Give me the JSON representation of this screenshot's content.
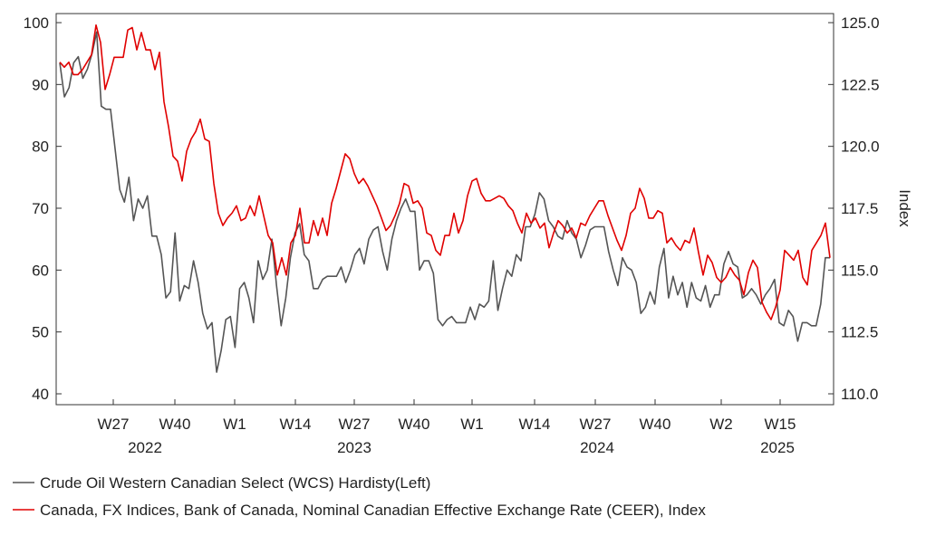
{
  "chart_data": {
    "type": "line",
    "title": "",
    "x_period_labels": [
      "W27",
      "W40",
      "W1",
      "W14",
      "W27",
      "W40",
      "W1",
      "W14",
      "W27",
      "W40",
      "W2",
      "W15"
    ],
    "x_year_labels": [
      "2022",
      "2023",
      "2024",
      "2025"
    ],
    "y_left": {
      "label": "",
      "ticks": [
        "40",
        "50",
        "60",
        "70",
        "80",
        "90",
        "100"
      ],
      "range": [
        40,
        100
      ]
    },
    "y_right": {
      "label": "Index",
      "ticks": [
        "110.0",
        "112.5",
        "115.0",
        "117.5",
        "120.0",
        "122.5",
        "125.0"
      ],
      "range": [
        110,
        125
      ]
    },
    "grid": false,
    "legend_position": "bottom",
    "series": [
      {
        "name": "Crude Oil Western Canadian Select (WCS) Hardisty(Left)",
        "axis": "left",
        "color": "#555555",
        "values": [
          93.5,
          88,
          89.5,
          93.5,
          94.5,
          91,
          92.5,
          95,
          98.5,
          86.5,
          86,
          86,
          79.5,
          73,
          71,
          75,
          68,
          71.5,
          70,
          72,
          65.5,
          65.5,
          62.5,
          55.5,
          56.5,
          66,
          55,
          57.5,
          57,
          61.5,
          58,
          53,
          50.5,
          51.5,
          43.5,
          47,
          52,
          52.5,
          47.5,
          57,
          58,
          55.5,
          51.5,
          61.5,
          58.5,
          60,
          65,
          57.5,
          51,
          55.5,
          62,
          66,
          67.5,
          62.5,
          61.5,
          57,
          57,
          58.5,
          59,
          59,
          59,
          60.5,
          58,
          60,
          62.5,
          63.5,
          61,
          65,
          66.5,
          67,
          63,
          60,
          65,
          68,
          70,
          71.5,
          69.5,
          69.5,
          60,
          61.5,
          61.5,
          59.5,
          52,
          51,
          52,
          52.5,
          51.5,
          51.5,
          51.5,
          54,
          52,
          54.5,
          54,
          55,
          61.5,
          53.5,
          57,
          60,
          59,
          62.5,
          61.5,
          67,
          67,
          69,
          72.5,
          71.5,
          68,
          67,
          65.5,
          65,
          68,
          66,
          65,
          62,
          64,
          66.5,
          67,
          67,
          67,
          63,
          60,
          57.5,
          62,
          60.5,
          60,
          58,
          53,
          54,
          56.5,
          54.5,
          60.5,
          63.5,
          55.5,
          59,
          56,
          58,
          54,
          58,
          55.5,
          55,
          57.5,
          54,
          56,
          56,
          61,
          63,
          61,
          60.5,
          55.5,
          56,
          57,
          56,
          54.5,
          56,
          57,
          58.5,
          51.5,
          51,
          53.5,
          52.5,
          48.5,
          51.5,
          51.5,
          51,
          51,
          54.5,
          62,
          62
        ]
      },
      {
        "name": "Canada, FX Indices, Bank of Canada, Nominal Canadian Effective Exchange Rate (CEER), Index",
        "axis": "right",
        "color": "#e00000",
        "values": [
          123.4,
          123.2,
          123.4,
          122.9,
          122.9,
          123.1,
          123.4,
          123.7,
          124.9,
          124.2,
          122.3,
          122.9,
          123.6,
          123.6,
          123.6,
          124.7,
          124.8,
          123.9,
          124.6,
          123.9,
          123.9,
          123.1,
          123.8,
          121.8,
          120.8,
          119.6,
          119.4,
          118.6,
          119.8,
          120.3,
          120.6,
          121.1,
          120.3,
          120.2,
          118.5,
          117.3,
          116.8,
          117.1,
          117.3,
          117.6,
          117,
          117.1,
          117.6,
          117.2,
          118.0,
          117.2,
          116.4,
          116.1,
          114.8,
          115.5,
          114.8,
          116.1,
          116.4,
          117.5,
          116.1,
          116.1,
          117.0,
          116.4,
          117.1,
          116.4,
          117.7,
          118.3,
          119.0,
          119.7,
          119.5,
          118.9,
          118.5,
          118.7,
          118.4,
          118.0,
          117.6,
          117.1,
          116.6,
          116.8,
          117.2,
          117.7,
          118.5,
          118.4,
          117.7,
          117.8,
          117.5,
          116.5,
          116.4,
          115.8,
          115.6,
          116.4,
          116.4,
          117.3,
          116.5,
          117,
          118.0,
          118.6,
          118.7,
          118.1,
          117.8,
          117.8,
          117.9,
          118.0,
          117.9,
          117.6,
          117.4,
          116.9,
          116.5,
          117.3,
          116.9,
          117.1,
          116.7,
          116.9,
          115.9,
          116.5,
          117.0,
          116.8,
          116.5,
          116.7,
          116.3,
          116.9,
          116.8,
          117.2,
          117.5,
          117.8,
          117.8,
          117.2,
          116.7,
          116.2,
          115.8,
          116.4,
          117.3,
          117.5,
          118.3,
          117.9,
          117.1,
          117.1,
          117.4,
          117.3,
          116.1,
          116.3,
          116.0,
          115.8,
          116.2,
          116.1,
          116.7,
          115.7,
          114.8,
          115.6,
          115.3,
          114.7,
          114.5,
          114.7,
          115.1,
          114.8,
          114.6,
          114.0,
          114.9,
          115.4,
          115.1,
          113.7,
          113.3,
          113.0,
          113.5,
          114.2,
          115.8,
          115.6,
          115.4,
          115.8,
          114.7,
          114.4,
          115.8,
          116.1,
          116.4,
          116.9,
          115.5
        ]
      }
    ]
  },
  "legend": [
    {
      "label": "Crude Oil Western Canadian Select (WCS) Hardisty(Left)",
      "color": "#555555"
    },
    {
      "label": "Canada, FX Indices, Bank of Canada, Nominal Canadian Effective Exchange Rate (CEER), Index",
      "color": "#e00000"
    }
  ]
}
